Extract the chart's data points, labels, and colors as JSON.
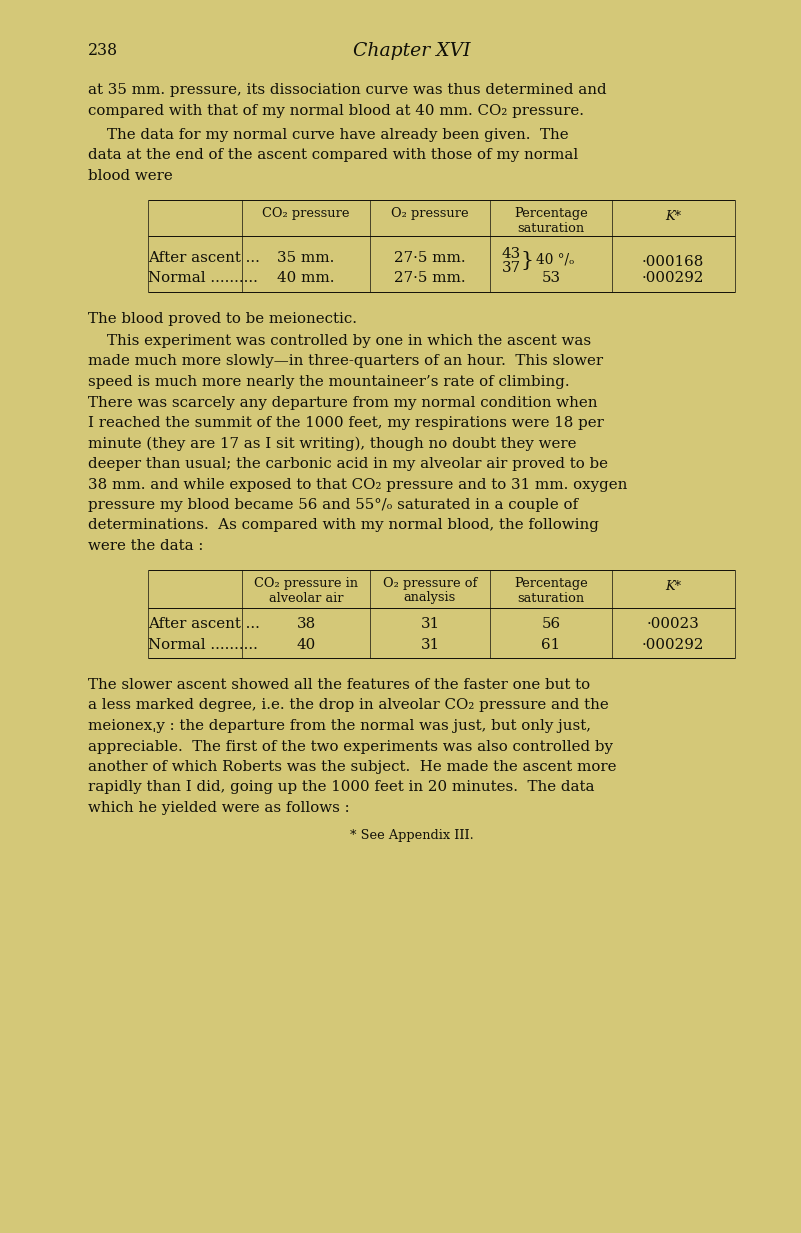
{
  "bg_color": "#d6c97e",
  "page_bg": "#d8cb82",
  "text_color": "#1a1708",
  "page_number": "238",
  "chapter_title": "Chapter XVI",
  "p1_lines": [
    "at 35 mm. pressure, its dissociation curve was thus determined and",
    "compared with that of my normal blood at 40 mm. CO₂ pressure."
  ],
  "p2_lines": [
    "    The data for my normal curve have already been given.  The",
    "data at the end of the ascent compared with those of my normal",
    "blood were"
  ],
  "t1_headers": [
    "CO₂ pressure",
    "O₂ pressure",
    "Percentage\nsaturation",
    "K*"
  ],
  "t1_row1": [
    "After ascent ...",
    "35 mm.",
    "27·5 mm.",
    "43",
    "37",
    "40 °/ₒ",
    "·000168"
  ],
  "t1_row2": [
    "Normal ..........",
    "40 mm.",
    "27·5 mm.",
    "53",
    "·000292"
  ],
  "p3_line": "The blood proved to be meionectic.",
  "p4_lines": [
    "    This experiment was controlled by one in which the ascent was",
    "made much more slowly—in three-quarters of an hour.  This slower",
    "speed is much more nearly the mountaineer’s rate of climbing.",
    "There was scarcely any departure from my normal condition when",
    "I reached the summit of the 1000 feet, my respirations were 18 per",
    "minute (they are 17 as I sit writing), though no doubt they were",
    "deeper than usual; the carbonic acid in my alveolar air proved to be",
    "38 mm. and while exposed to that CO₂ pressure and to 31 mm. oxygen",
    "pressure my blood became 56 and 55°/ₒ saturated in a couple of",
    "determinations.  As compared with my normal blood, the following",
    "were the data :"
  ],
  "t2_headers": [
    "CO₂ pressure in\nalveolar air",
    "O₂ pressure of\nanalysis",
    "Percentage\nsaturation",
    "K*"
  ],
  "t2_row1": [
    "After ascent ...",
    "38",
    "31",
    "56",
    "·00023"
  ],
  "t2_row2": [
    "Normal ..........",
    "40",
    "31",
    "61",
    "·000292"
  ],
  "p5_lines": [
    "The slower ascent showed all the features of the faster one but to",
    "a less marked degree, i.e. the drop in alveolar CO₂ pressure and the",
    "meionexˌy : the departure from the normal was just, but only just,",
    "appreciable.  The first of the two experiments was also controlled by",
    "another of which Roberts was the subject.  He made the ascent more",
    "rapidly than I did, going up the 1000 feet in 20 minutes.  The data",
    "which he yielded were as follows :"
  ],
  "footnote": "* See Appendix III."
}
